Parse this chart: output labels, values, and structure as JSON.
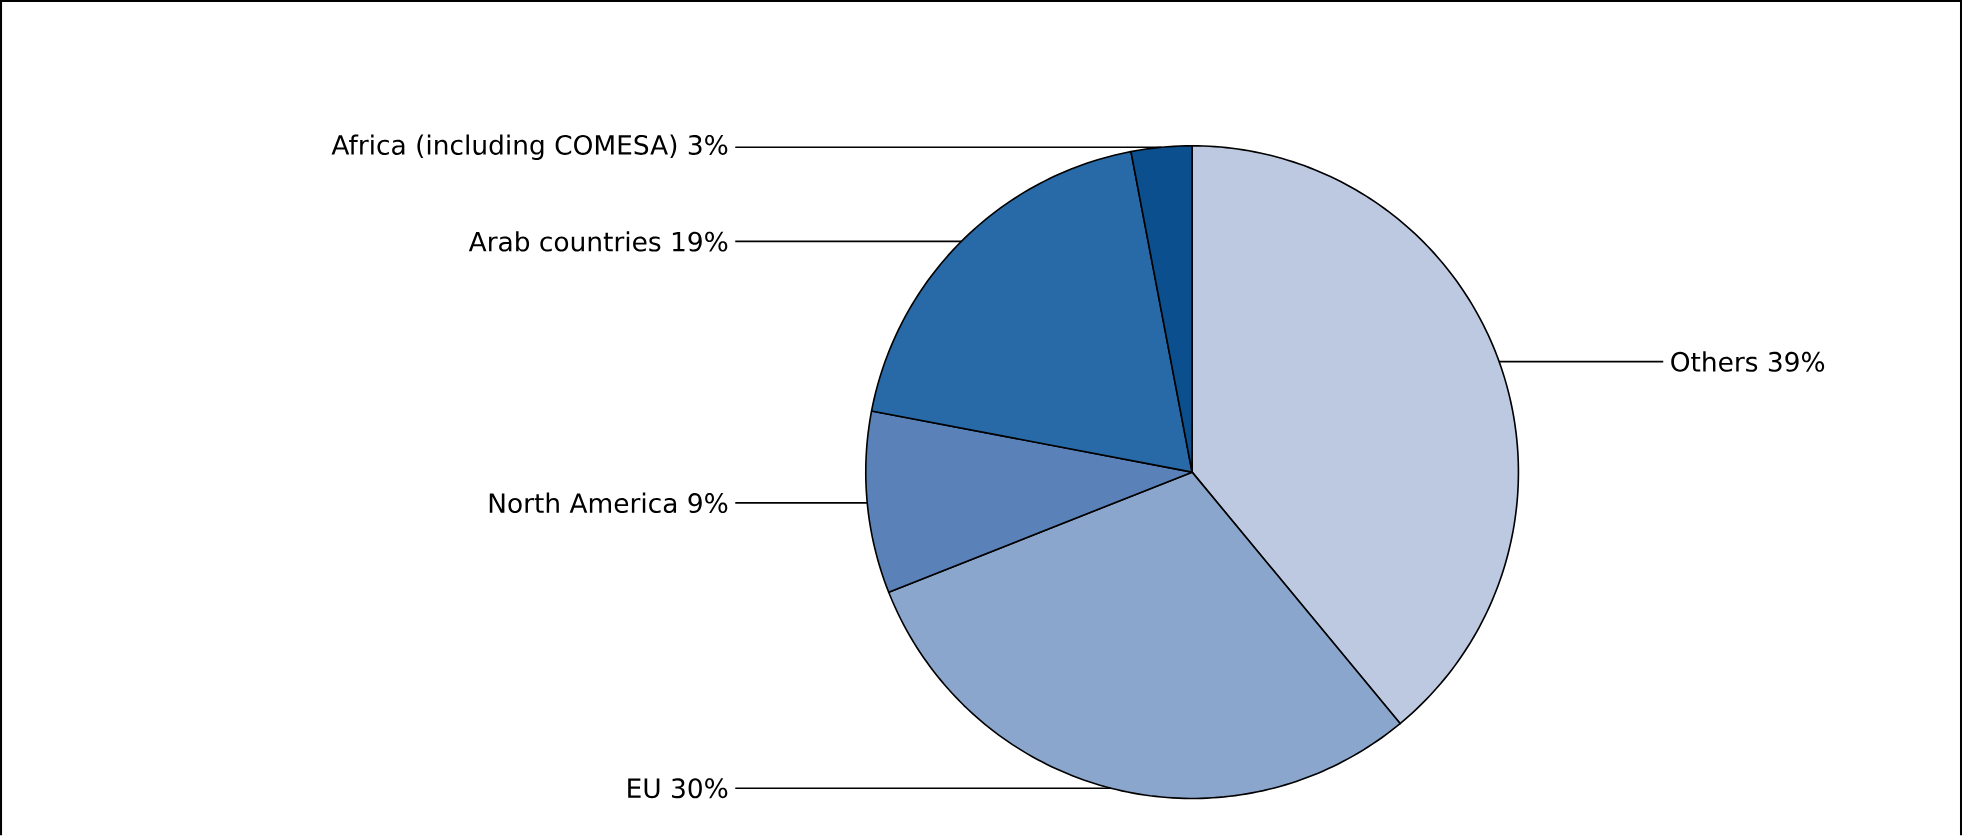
{
  "chart_data": {
    "type": "pie",
    "categories": [
      "Others",
      "EU",
      "North America",
      "Arab countries",
      "Africa (including COMESA)"
    ],
    "values": [
      39,
      30,
      9,
      19,
      3
    ],
    "colors": [
      "#bcc9e1",
      "#8ba6cd",
      "#5b82b8",
      "#286aa8",
      "#0b4f8e"
    ],
    "value_labels": [
      "39%",
      "30%",
      "9%",
      "19%",
      "3%"
    ]
  }
}
